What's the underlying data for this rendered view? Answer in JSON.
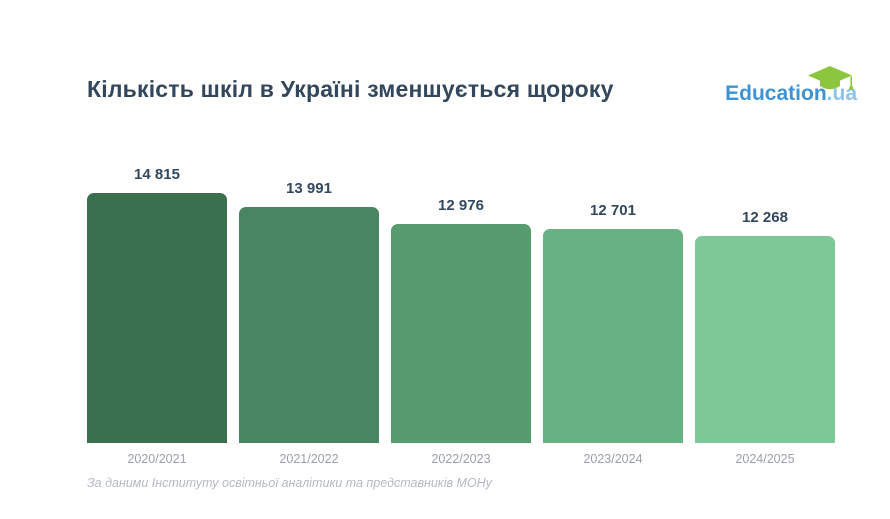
{
  "header": {
    "title": "Кількість шкіл в Україні зменшується щороку",
    "logo": {
      "name": "Education",
      "tld": ".ua",
      "brand_blue": "#3e93d4",
      "tld_blue": "#8ac4ec",
      "cap_green": "#8cc63e"
    }
  },
  "chart_data": {
    "type": "bar",
    "title": "Кількість шкіл в Україні зменшується щороку",
    "categories": [
      "2020/2021",
      "2021/2022",
      "2022/2023",
      "2023/2024",
      "2024/2025"
    ],
    "values": [
      14815,
      13991,
      12976,
      12701,
      12268
    ],
    "values_display": [
      "14 815",
      "13 991",
      "12 976",
      "12 701",
      "12 268"
    ],
    "bar_colors": [
      "#3a704e",
      "#4a8561",
      "#579b6e",
      "#68b183",
      "#7ec897"
    ],
    "value_label_color": "#33475c",
    "tick_label_color": "#9aa1a8",
    "xlabel": "",
    "ylabel": "",
    "ylim": [
      0,
      14815
    ],
    "grid": false,
    "legend": false,
    "value_labels_position": "above-bars",
    "orientation": "vertical"
  },
  "footer": {
    "source": "За даними Інституту освітньої аналітики та представників МОНу"
  }
}
